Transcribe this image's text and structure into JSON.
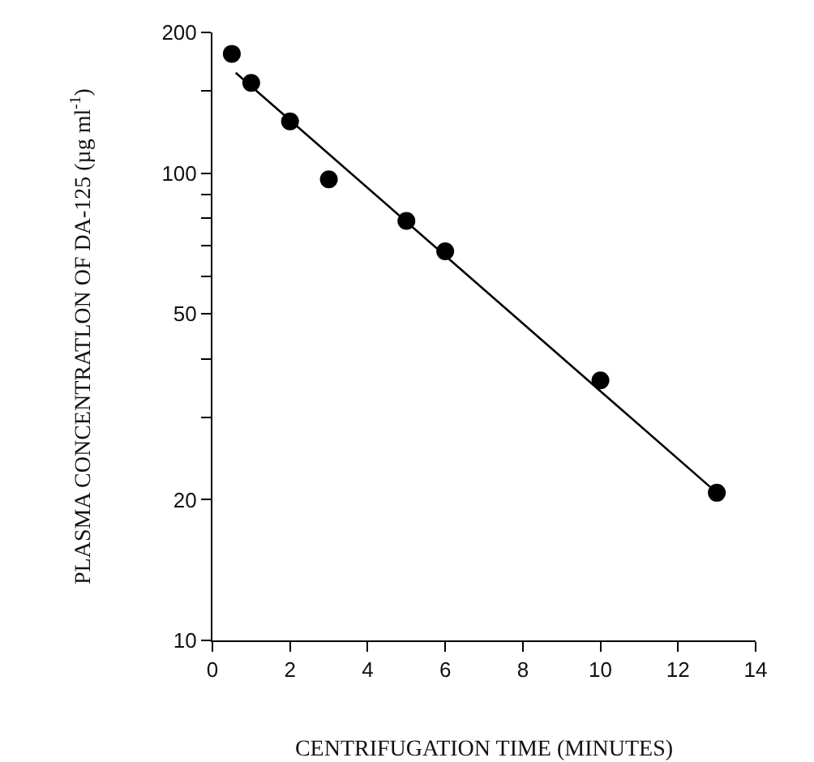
{
  "chart_data": {
    "type": "scatter",
    "xlabel": "CENTRIFUGATION TIME (MINUTES)",
    "ylabel": "PLASMA CONCENTRATLON OF DA-125 (µg ml$^{-1}$)",
    "log": "y",
    "xlim": [
      0,
      14
    ],
    "xticks": [
      0,
      2,
      4,
      6,
      8,
      10,
      12,
      14
    ],
    "ylim": [
      10,
      200
    ],
    "yticks": [
      10,
      20,
      {
        "value": 30,
        "label": null
      },
      {
        "value": 40,
        "label": null
      },
      50,
      {
        "value": 60,
        "label": null
      },
      {
        "value": 70,
        "label": null
      },
      {
        "value": 80,
        "label": null
      },
      {
        "value": 90,
        "label": null
      },
      100,
      {
        "value": 150,
        "label": null
      },
      200
    ],
    "series": [
      {
        "marker": "circle",
        "color": "#000000",
        "x": [
          0.5,
          1,
          2,
          3,
          5,
          6,
          10,
          13
        ],
        "values": [
          180,
          156,
          129,
          97,
          79,
          68,
          36,
          20.7
        ]
      },
      {
        "type": "line",
        "marker": "none",
        "line_style": "solid",
        "color": "#000000",
        "x": [
          0.6,
          13
        ],
        "values": [
          164,
          20.7
        ]
      }
    ]
  }
}
